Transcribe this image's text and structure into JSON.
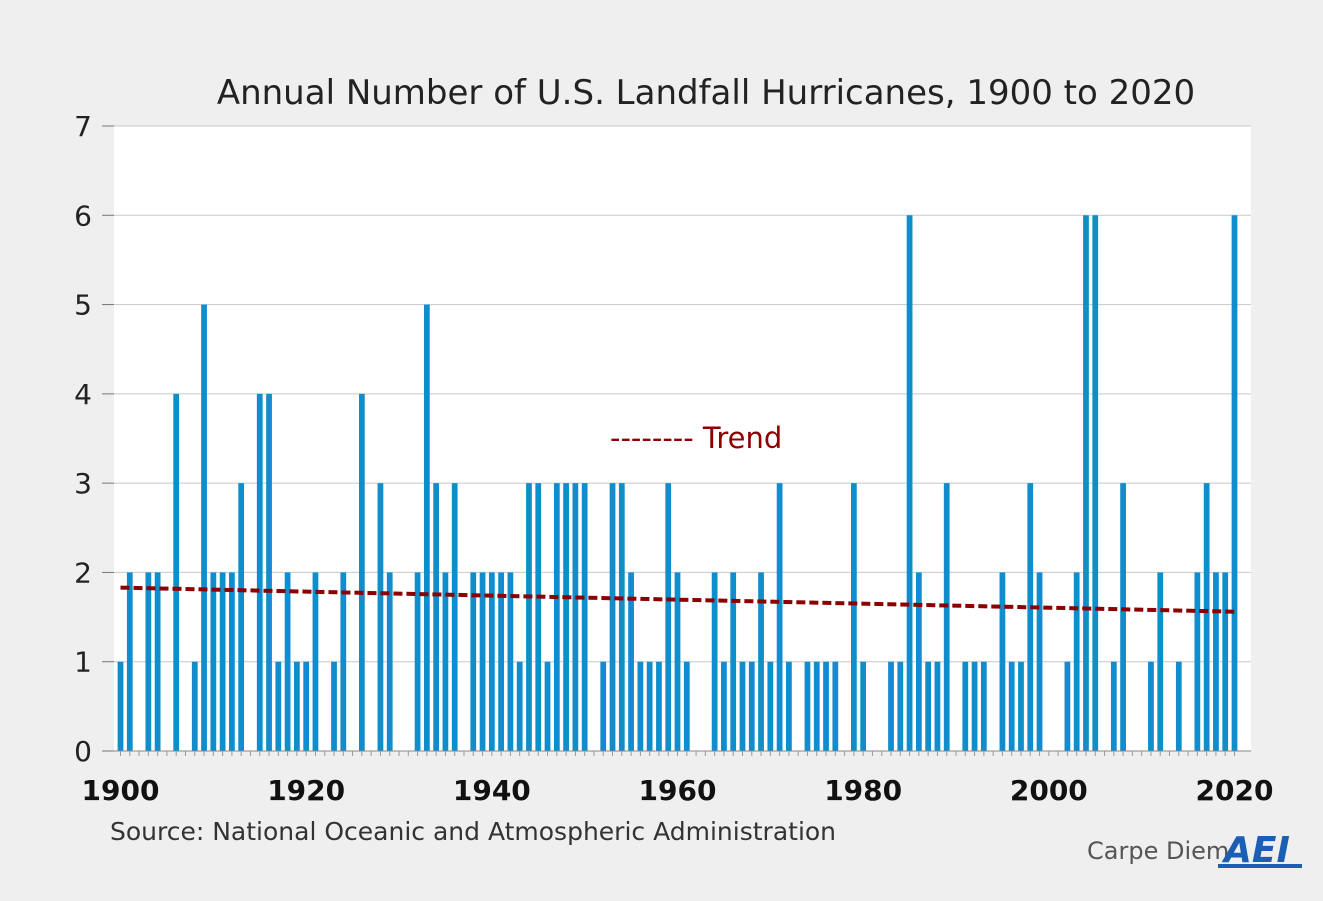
{
  "chart_data": {
    "type": "bar",
    "title": "Annual Number of U.S. Landfall Hurricanes, 1900 to 2020",
    "xlabel": "",
    "ylabel": "",
    "ylim": [
      0,
      7
    ],
    "yticks": [
      "0",
      "1",
      "2",
      "3",
      "4",
      "5",
      "6",
      "7"
    ],
    "xticks": [
      "1900",
      "1920",
      "1940",
      "1960",
      "1980",
      "2000",
      "2020"
    ],
    "grid": true,
    "x": [
      1900,
      1901,
      1902,
      1903,
      1904,
      1905,
      1906,
      1907,
      1908,
      1909,
      1910,
      1911,
      1912,
      1913,
      1914,
      1915,
      1916,
      1917,
      1918,
      1919,
      1920,
      1921,
      1922,
      1923,
      1924,
      1925,
      1926,
      1927,
      1928,
      1929,
      1930,
      1931,
      1932,
      1933,
      1934,
      1935,
      1936,
      1937,
      1938,
      1939,
      1940,
      1941,
      1942,
      1943,
      1944,
      1945,
      1946,
      1947,
      1948,
      1949,
      1950,
      1951,
      1952,
      1953,
      1954,
      1955,
      1956,
      1957,
      1958,
      1959,
      1960,
      1961,
      1962,
      1963,
      1964,
      1965,
      1966,
      1967,
      1968,
      1969,
      1970,
      1971,
      1972,
      1973,
      1974,
      1975,
      1976,
      1977,
      1978,
      1979,
      1980,
      1981,
      1982,
      1983,
      1984,
      1985,
      1986,
      1987,
      1988,
      1989,
      1990,
      1991,
      1992,
      1993,
      1994,
      1995,
      1996,
      1997,
      1998,
      1999,
      2000,
      2001,
      2002,
      2003,
      2004,
      2005,
      2006,
      2007,
      2008,
      2009,
      2010,
      2011,
      2012,
      2013,
      2014,
      2015,
      2016,
      2017,
      2018,
      2019,
      2020
    ],
    "values": [
      1,
      2,
      0,
      2,
      2,
      0,
      4,
      0,
      1,
      5,
      2,
      2,
      2,
      3,
      0,
      4,
      4,
      1,
      2,
      1,
      1,
      2,
      0,
      1,
      2,
      0,
      4,
      0,
      3,
      2,
      0,
      0,
      2,
      5,
      3,
      2,
      3,
      0,
      2,
      2,
      2,
      2,
      2,
      1,
      3,
      3,
      1,
      3,
      3,
      3,
      3,
      0,
      1,
      3,
      3,
      2,
      1,
      1,
      1,
      3,
      2,
      1,
      0,
      0,
      2,
      1,
      2,
      1,
      1,
      2,
      1,
      3,
      1,
      0,
      1,
      1,
      1,
      1,
      0,
      3,
      1,
      0,
      0,
      1,
      1,
      6,
      2,
      1,
      1,
      3,
      0,
      1,
      1,
      1,
      0,
      2,
      1,
      1,
      3,
      2,
      0,
      0,
      1,
      2,
      6,
      6,
      0,
      1,
      3,
      0,
      0,
      1,
      2,
      0,
      1,
      0,
      2,
      3,
      2,
      2,
      6
    ],
    "bar_color": "#0f8dcc",
    "trend": {
      "label": "-------- Trend",
      "start": 1.83,
      "end": 1.56,
      "color": "#8b0000"
    },
    "annotations": {
      "source": "Source: National Oceanic and Atmospheric Administration",
      "brand": "Carpe Diem",
      "logo": "AEI"
    }
  }
}
